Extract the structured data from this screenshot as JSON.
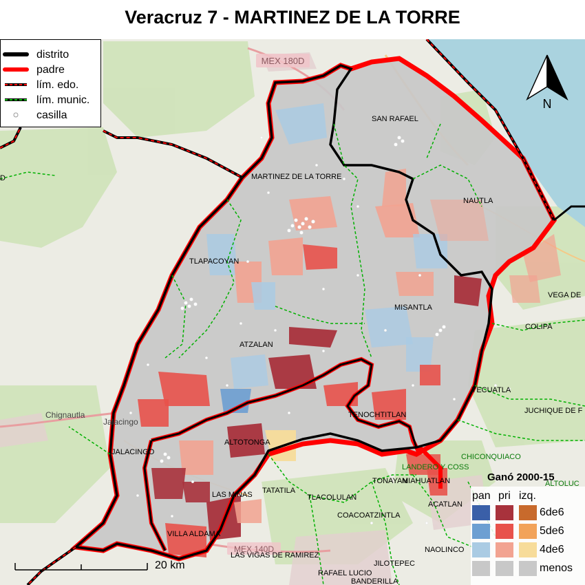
{
  "title": "Veracruz 7 - MARTINEZ DE LA TORRE",
  "legend": {
    "items": [
      {
        "label": "distrito",
        "color": "#000000"
      },
      {
        "label": "padre",
        "color": "#ff0000"
      },
      {
        "label": "lím. edo.",
        "color": "#ff0000"
      },
      {
        "label": "lím. munic.",
        "color": "#00c800"
      },
      {
        "label": "casilla",
        "color": "#ffffff"
      }
    ]
  },
  "north_label": "N",
  "scale_label": "20 km",
  "winner_legend": {
    "title": "Ganó 2000-15",
    "parties": [
      "pan",
      "pri",
      "izq."
    ],
    "tiers": [
      "6de6",
      "5de6",
      "4de6",
      "menos"
    ],
    "colors": {
      "pan": [
        "#3a5fa8",
        "#6d9fd2",
        "#aacbe3",
        "#c8c8c8"
      ],
      "pri": [
        "#a8323c",
        "#e8524b",
        "#f2a391",
        "#c8c8c8"
      ],
      "izq": [
        "#c86a2c",
        "#f2a35a",
        "#f7dc9a",
        "#c8c8c8"
      ]
    }
  },
  "map": {
    "road_label": "MEX 180D",
    "road_label_2": "MEX 140D",
    "place_labels": [
      {
        "id": "san-rafael",
        "text": "SAN RAFAEL"
      },
      {
        "id": "martinez",
        "text": "MARTINEZ DE LA TORRE"
      },
      {
        "id": "nautla",
        "text": "NAUTLA"
      },
      {
        "id": "tlapacoyan",
        "text": "TLAPACOYAN"
      },
      {
        "id": "misantla",
        "text": "MISANTLA"
      },
      {
        "id": "vega",
        "text": "VEGA DE"
      },
      {
        "id": "colipa",
        "text": "COLIPA"
      },
      {
        "id": "atzalan",
        "text": "ATZALAN"
      },
      {
        "id": "yecuatla",
        "text": "YECUATLA"
      },
      {
        "id": "juchique",
        "text": "JUCHIQUE DE F"
      },
      {
        "id": "chignautla",
        "text": "Chignautla"
      },
      {
        "id": "jalacingo-city",
        "text": "Jalacingo"
      },
      {
        "id": "tenochtitlan",
        "text": "TENOCHTITLAN"
      },
      {
        "id": "jalacingo",
        "text": "JALACINGO"
      },
      {
        "id": "altotonga",
        "text": "ALTOTONGA"
      },
      {
        "id": "chiconquiaco",
        "text": "CHICONQUIACO"
      },
      {
        "id": "landero",
        "text": "LANDERO Y COSS"
      },
      {
        "id": "altotonga-ip",
        "text": "ALTOLUC"
      },
      {
        "id": "tonayan",
        "text": "TONAYAN"
      },
      {
        "id": "miahuatlan",
        "text": "MIAHUATLAN"
      },
      {
        "id": "las-minas",
        "text": "LAS MINAS"
      },
      {
        "id": "tatatila",
        "text": "TATATILA"
      },
      {
        "id": "tlacolulan",
        "text": "TLACOLULAN"
      },
      {
        "id": "acatlan",
        "text": "ACATLAN"
      },
      {
        "id": "coacoatzintla",
        "text": "COACOATZINTLA"
      },
      {
        "id": "villa-aldama",
        "text": "VILLA ALDAMA"
      },
      {
        "id": "naolinco",
        "text": "NAOLINCO"
      },
      {
        "id": "las-vigas",
        "text": "LAS VIGAS DE RAMIREZ"
      },
      {
        "id": "jilotepec",
        "text": "JILOTEPEC"
      },
      {
        "id": "rafael-lucio",
        "text": "RAFAEL LUCIO"
      },
      {
        "id": "banderilla",
        "text": "BANDERILLA"
      },
      {
        "id": "d-left",
        "text": "D"
      }
    ]
  }
}
